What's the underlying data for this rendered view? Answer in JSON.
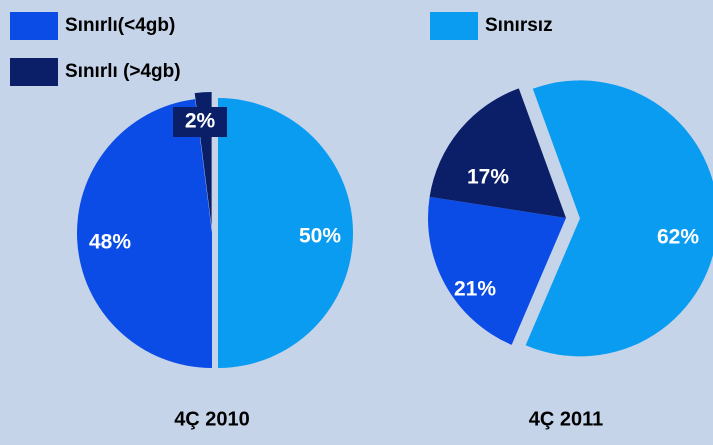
{
  "chart_data": [
    {
      "type": "pie",
      "title": "4Ç 2010",
      "categories": [
        "Sınırsız",
        "Sınırlı(<4gb)",
        "Sınırlı (>4gb)"
      ],
      "values": [
        50,
        48,
        2
      ],
      "value_labels": [
        "50%",
        "48%",
        "2%"
      ],
      "colors": [
        "#0a9cf0",
        "#0b4ce6",
        "#0b1f68"
      ]
    },
    {
      "type": "pie",
      "title": "4Ç 2011",
      "categories": [
        "Sınırsız",
        "Sınırlı(<4gb)",
        "Sınırlı (>4gb)"
      ],
      "values": [
        62,
        21,
        17
      ],
      "value_labels": [
        "62%",
        "21%",
        "17%"
      ],
      "colors": [
        "#0a9cf0",
        "#0b4ce6",
        "#0b1f68"
      ]
    }
  ]
}
